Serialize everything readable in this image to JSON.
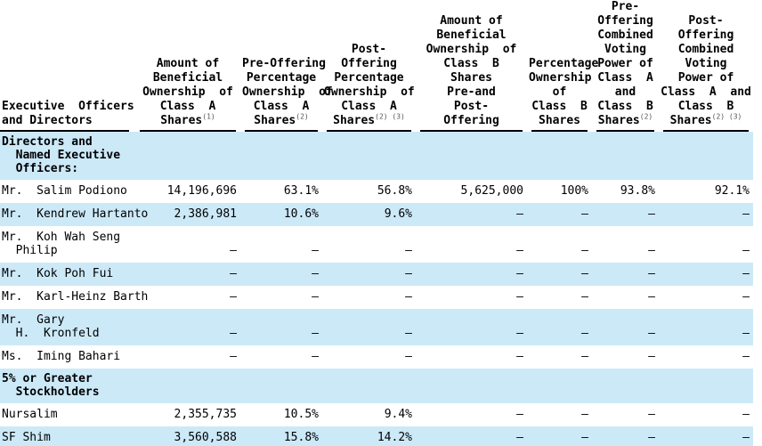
{
  "colors": {
    "highlight": "#cce9f8",
    "background": "#ffffff",
    "text": "#000000",
    "rule": "#000000"
  },
  "table": {
    "columns": [
      {
        "header": "Executive  Officers\nand Directors",
        "sup": ""
      },
      {
        "header": "Amount of\nBeneficial\nOwnership  of\nClass  A\nShares",
        "sup": "(1)"
      },
      {
        "header": "Pre-Offering\nPercentage\nOwnership  of\nClass  A\nShares",
        "sup": "(2)"
      },
      {
        "header": "Post-\nOffering\nPercentage\nOwnership  of\nClass  A\nShares",
        "sup": "(2) (3)"
      },
      {
        "header": "Amount of\nBeneficial\nOwnership  of\nClass  B\nShares\nPre-and\nPost-\nOffering",
        "sup": ""
      },
      {
        "header": "Percentage\nOwnership\nof\nClass  B\nShares",
        "sup": ""
      },
      {
        "header": "Pre-\nOffering\nCombined\nVoting\nPower of\nClass  A\nand\nClass  B\nShares",
        "sup": "(2)"
      },
      {
        "header": "Post-\nOffering\nCombined\nVoting\nPower of\nClass  A  and\nClass  B\nShares",
        "sup": "(2) (3)"
      }
    ],
    "rows": [
      {
        "type": "section",
        "label": "Directors and\n  Named Executive\n  Officers:"
      },
      {
        "type": "data",
        "label": "Mr.  Salim Podiono",
        "values": [
          "14,196,696",
          "63.1%",
          "56.8%",
          "5,625,000",
          "100%",
          "93.8%",
          "92.1%"
        ]
      },
      {
        "type": "data",
        "label": "Mr.  Kendrew Hartanto",
        "values": [
          "2,386,981",
          "10.6%",
          "9.6%",
          "—",
          "—",
          "—",
          "—"
        ]
      },
      {
        "type": "data",
        "label": "Mr.  Koh Wah Seng\n  Philip",
        "values": [
          "—",
          "—",
          "—",
          "—",
          "—",
          "—",
          "—"
        ]
      },
      {
        "type": "data",
        "label": "Mr.  Kok Poh Fui",
        "values": [
          "—",
          "—",
          "—",
          "—",
          "—",
          "—",
          "—"
        ]
      },
      {
        "type": "data",
        "label": "Mr.  Karl-Heinz Barth",
        "values": [
          "—",
          "—",
          "—",
          "—",
          "—",
          "—",
          "—"
        ]
      },
      {
        "type": "data",
        "label": "Mr.  Gary\n  H.  Kronfeld",
        "values": [
          "—",
          "—",
          "—",
          "—",
          "—",
          "—",
          "—"
        ]
      },
      {
        "type": "data",
        "label": "Ms.  Iming Bahari",
        "values": [
          "—",
          "—",
          "—",
          "—",
          "—",
          "—",
          "—"
        ]
      },
      {
        "type": "section",
        "label": "5% or Greater\n  Stockholders"
      },
      {
        "type": "data",
        "label": "Nursalim",
        "values": [
          "2,355,735",
          "10.5%",
          "9.4%",
          "—",
          "—",
          "—",
          "—"
        ]
      },
      {
        "type": "data",
        "label": "SF Shim",
        "values": [
          "3,560,588",
          "15.8%",
          "14.2%",
          "—",
          "—",
          "—",
          "—"
        ]
      }
    ]
  }
}
